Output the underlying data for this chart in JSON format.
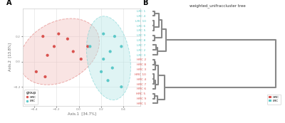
{
  "title_A": "A",
  "title_B": "B",
  "dendrogram_title": "weighted_unifraccluster tree",
  "xlabel": "Axis.1  [34.7%]",
  "ylabel": "Axis.2  [13.8%]",
  "hrc_points": [
    [
      -0.38,
      -0.08
    ],
    [
      -0.3,
      -0.12
    ],
    [
      -0.28,
      0.05
    ],
    [
      -0.22,
      0.12
    ],
    [
      -0.32,
      0.2
    ],
    [
      -0.18,
      0.22
    ],
    [
      -0.1,
      0.18
    ],
    [
      -0.05,
      0.08
    ],
    [
      0.02,
      0.02
    ],
    [
      0.08,
      0.12
    ]
  ],
  "lrc_points": [
    [
      0.1,
      0.12
    ],
    [
      0.22,
      0.22
    ],
    [
      0.32,
      0.2
    ],
    [
      0.38,
      0.12
    ],
    [
      0.28,
      0.08
    ],
    [
      0.22,
      0.02
    ],
    [
      0.3,
      -0.05
    ],
    [
      0.2,
      -0.08
    ],
    [
      0.38,
      -0.2
    ],
    [
      0.26,
      -0.15
    ]
  ],
  "hrc_color": "#D9534F",
  "lrc_color": "#5BC8C8",
  "hrc_fill": "#F2C4C2",
  "lrc_fill": "#B8E8E8",
  "hrc_leaf_order": [
    "HRC 9",
    "HRC 5",
    "HRC 1",
    "HRC 6",
    "HRC 7",
    "HRC 4",
    "HRC 10",
    "HRC 8",
    "HRC 2",
    "HRC 3"
  ],
  "lrc_leaf_order": [
    "LRC 8",
    "LRC 9",
    "LRC 6",
    "LRC 5",
    "LRC 10",
    "LRC 4",
    "LRC 1",
    "LRC 2",
    "LRC 7",
    "LRC 3"
  ],
  "background": "#FFFFFF",
  "grid_color": "#DDDDDD",
  "axis_color": "#AAAAAA",
  "xlim_left": [
    -0.5,
    0.55
  ],
  "ylim_left": [
    -0.35,
    0.42
  ],
  "xticks_left": [
    -0.4,
    -0.2,
    0.0,
    0.2,
    0.4
  ],
  "yticks_left": [
    -0.2,
    0.0,
    0.2
  ]
}
